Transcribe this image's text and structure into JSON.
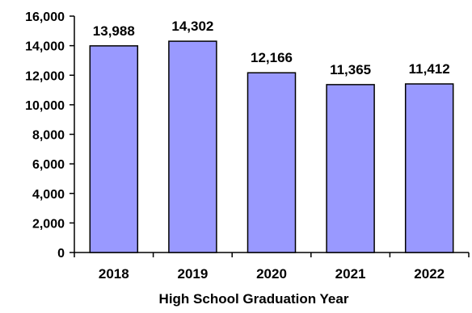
{
  "chart_data": {
    "type": "bar",
    "title": "",
    "xlabel": "High School Graduation Year",
    "ylabel": "",
    "categories": [
      "2018",
      "2019",
      "2020",
      "2021",
      "2022"
    ],
    "values": [
      13988,
      14302,
      12166,
      11365,
      11412
    ],
    "value_labels": [
      "13,988",
      "14,302",
      "12,166",
      "11,365",
      "11,412"
    ],
    "ylim": [
      0,
      16000
    ],
    "yticks": [
      0,
      2000,
      4000,
      6000,
      8000,
      10000,
      12000,
      14000,
      16000
    ],
    "ytick_labels": [
      "0",
      "2,000",
      "4,000",
      "6,000",
      "8,000",
      "10,000",
      "12,000",
      "14,000",
      "16,000"
    ],
    "grid": false,
    "legend": "none",
    "colors": {
      "bar_fill": "#9999ff",
      "bar_stroke": "#000000",
      "axis": "#000000"
    }
  }
}
